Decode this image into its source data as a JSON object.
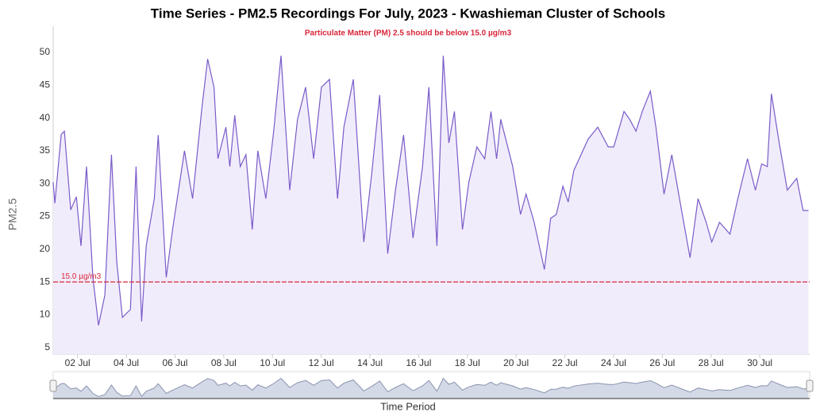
{
  "chart_data": {
    "type": "area",
    "title": "Time Series - PM2.5 Recordings For July, 2023 - Kwashieman Cluster of Schools",
    "subtitle": "Particulate Matter (PM) 2.5 should be below 15.0 µg/m3",
    "y_label": "PM2.5",
    "x_label": "Time Period",
    "range_input": "30",
    "color": "#7a5bc9",
    "fill": "#f1ecfb",
    "grid": false,
    "threshold": {
      "value": 15,
      "label": "15.0 µg/m3",
      "color": "#d9263a"
    },
    "xlim": [
      1,
      32.05
    ],
    "xticks": [
      {
        "value": 2,
        "label": "02 Jul"
      },
      {
        "value": 4,
        "label": "04 Jul"
      },
      {
        "value": 6,
        "label": "06 Jul"
      },
      {
        "value": 8,
        "label": "08 Jul"
      },
      {
        "value": 10,
        "label": "10 Jul"
      },
      {
        "value": 12,
        "label": "12 Jul"
      },
      {
        "value": 14,
        "label": "14 Jul"
      },
      {
        "value": 16,
        "label": "16 Jul"
      },
      {
        "value": 18,
        "label": "18 Jul"
      },
      {
        "value": 20,
        "label": "20 Jul"
      },
      {
        "value": 22,
        "label": "22 Jul"
      },
      {
        "value": 24,
        "label": "24 Jul"
      },
      {
        "value": 26,
        "label": "26 Jul"
      },
      {
        "value": 28,
        "label": "28 Jul"
      },
      {
        "value": 30,
        "label": "30 Jul"
      }
    ],
    "ylim": [
      4,
      54
    ],
    "yticks": [
      5,
      10,
      15,
      20,
      25,
      30,
      35,
      40,
      45,
      50
    ],
    "x": [
      1.0,
      1.07,
      1.33,
      1.46,
      1.72,
      1.95,
      2.14,
      2.37,
      2.63,
      2.86,
      3.12,
      3.39,
      3.61,
      3.84,
      4.17,
      4.4,
      4.63,
      4.82,
      5.15,
      5.31,
      5.64,
      5.9,
      6.39,
      6.72,
      7.11,
      7.34,
      7.6,
      7.76,
      8.09,
      8.25,
      8.45,
      8.68,
      8.91,
      9.17,
      9.4,
      9.73,
      10.05,
      10.35,
      10.71,
      11.03,
      11.36,
      11.69,
      12.01,
      12.34,
      12.67,
      12.93,
      13.32,
      13.75,
      14.07,
      14.4,
      14.73,
      15.05,
      15.38,
      15.77,
      16.16,
      16.42,
      16.75,
      17.01,
      17.24,
      17.47,
      17.8,
      18.06,
      18.39,
      18.71,
      18.97,
      19.2,
      19.37,
      19.86,
      20.18,
      20.41,
      20.74,
      21.16,
      21.42,
      21.65,
      21.92,
      22.14,
      22.37,
      22.96,
      23.35,
      23.78,
      24.01,
      24.43,
      24.66,
      24.92,
      25.18,
      25.51,
      25.74,
      26.07,
      26.39,
      26.82,
      27.14,
      27.47,
      27.8,
      28.03,
      28.35,
      28.78,
      29.1,
      29.5,
      29.82,
      30.08,
      30.31,
      30.48,
      30.8,
      31.13,
      31.52,
      31.78,
      32.0
    ],
    "values": [
      30.2,
      27,
      37.5,
      38,
      26,
      28,
      20.5,
      32.6,
      15.7,
      8.4,
      13,
      34.4,
      18,
      9.6,
      10.8,
      32.6,
      9,
      20.5,
      27.7,
      37.4,
      15.7,
      23,
      35,
      27.7,
      41.7,
      49,
      44.7,
      33.8,
      38.6,
      32.6,
      40.4,
      32.6,
      34.4,
      23,
      35,
      27.7,
      38,
      49.5,
      29,
      39.8,
      44.7,
      33.8,
      44.7,
      45.9,
      27.7,
      38.6,
      45.9,
      21.1,
      31.4,
      43.5,
      19.3,
      29,
      37.4,
      21.7,
      32.6,
      44.7,
      20.5,
      49.5,
      36.2,
      41,
      23,
      30.2,
      35.6,
      33.8,
      41,
      33.8,
      39.8,
      32.6,
      25.3,
      28.4,
      24.1,
      16.9,
      24.7,
      25.3,
      29.6,
      27.2,
      32,
      36.8,
      38.6,
      35.6,
      35.6,
      41,
      39.8,
      38,
      41,
      44.1,
      38.6,
      28.4,
      34.4,
      25.3,
      18.7,
      27.7,
      24.1,
      21.1,
      24.1,
      22.3,
      27.7,
      33.8,
      29,
      33,
      32.6,
      43.7,
      36.2,
      29,
      30.8,
      25.9,
      25.9
    ]
  }
}
